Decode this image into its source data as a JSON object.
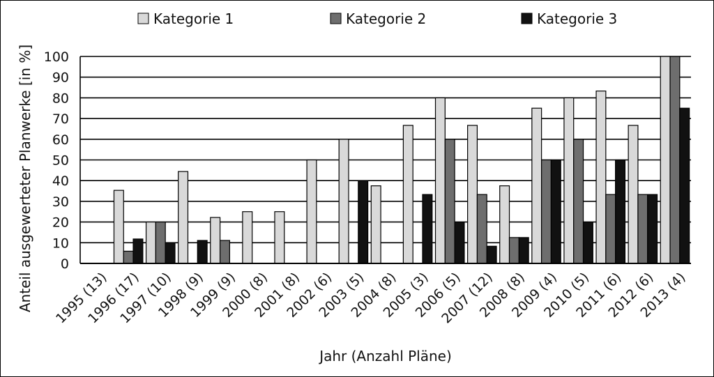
{
  "chart_data": {
    "type": "bar",
    "title": "",
    "xlabel": "Jahr (Anzahl Pläne)",
    "ylabel": "Anteil ausgewerteter Planwerke [in %]",
    "ylim": [
      0,
      100
    ],
    "yticks": [
      "0",
      "10",
      "20",
      "30",
      "40",
      "50",
      "60",
      "70",
      "80",
      "90",
      "100"
    ],
    "grid": "horizontal",
    "legend_position": "top",
    "categories": [
      "1995 (13)",
      "1996 (17)",
      "1997 (10)",
      "1998 (9)",
      "1999 (9)",
      "2000 (8)",
      "2001 (8)",
      "2002 (6)",
      "2003 (5)",
      "2004 (8)",
      "2005 (3)",
      "2006 (5)",
      "2007 (12)",
      "2008 (8)",
      "2009 (4)",
      "2010 (5)",
      "2011 (6)",
      "2012 (6)",
      "2013 (4)"
    ],
    "series": [
      {
        "name": "Kategorie 1",
        "color": "#d9d9d9",
        "values": [
          0,
          35.3,
          20,
          44.4,
          22.2,
          25,
          25,
          50,
          60,
          37.5,
          66.7,
          80,
          66.7,
          37.5,
          75,
          80,
          83.3,
          66.7,
          100
        ]
      },
      {
        "name": "Kategorie 2",
        "color": "#6e6e6e",
        "values": [
          0,
          5.9,
          20,
          0,
          11.1,
          0,
          0,
          0,
          0,
          0,
          0,
          60,
          33.3,
          12.5,
          50,
          60,
          33.3,
          33.3,
          100
        ]
      },
      {
        "name": "Kategorie 3",
        "color": "#111111",
        "values": [
          0,
          11.8,
          10,
          11.1,
          0,
          0,
          0,
          0,
          40,
          0,
          33.3,
          20,
          8.3,
          12.5,
          50,
          20,
          50,
          33.3,
          75
        ]
      }
    ]
  }
}
